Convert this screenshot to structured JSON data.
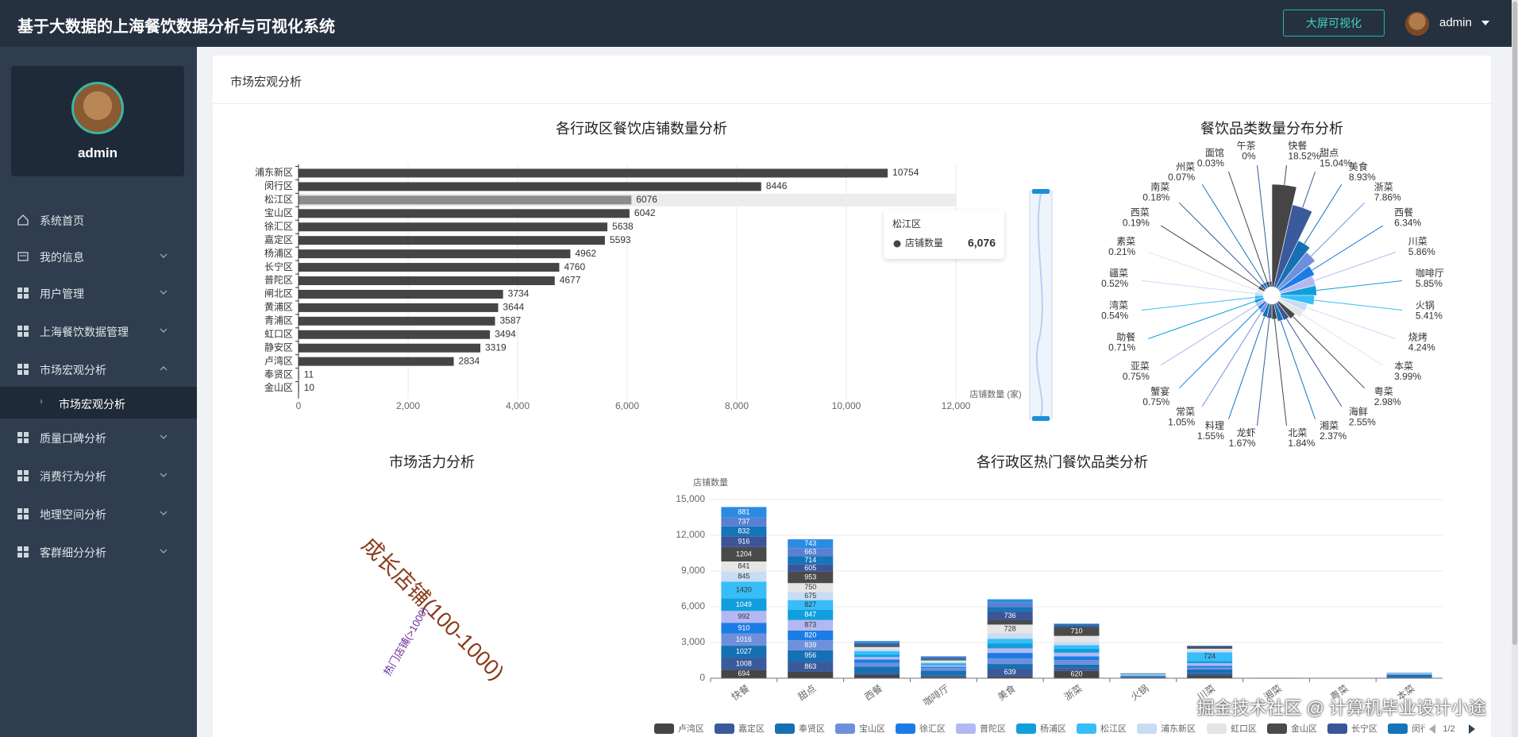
{
  "header": {
    "title": "基于大数据的上海餐饮数据分析与可视化系统",
    "button": "大屏可视化",
    "user": "admin"
  },
  "sidebar": {
    "username": "admin",
    "menu": [
      {
        "label": "系统首页"
      },
      {
        "label": "我的信息"
      },
      {
        "label": "用户管理"
      },
      {
        "label": "上海餐饮数据管理"
      },
      {
        "label": "市场宏观分析",
        "children": [
          "市场宏观分析"
        ]
      },
      {
        "label": "质量口碑分析"
      },
      {
        "label": "消费行为分析"
      },
      {
        "label": "地理空间分析"
      },
      {
        "label": "客群细分分析"
      }
    ]
  },
  "page": {
    "section_title": "市场宏观分析"
  },
  "watermark": "掘金技术社区 @ 计算机毕业设计小途",
  "chart_data": [
    {
      "type": "bar",
      "orientation": "horizontal",
      "title": "各行政区餐饮店铺数量分析",
      "x_label": "店铺数量 (家)",
      "categories": [
        "浦东新区",
        "闵行区",
        "松江区",
        "宝山区",
        "徐汇区",
        "嘉定区",
        "杨浦区",
        "长宁区",
        "普陀区",
        "闸北区",
        "黄浦区",
        "青浦区",
        "虹口区",
        "静安区",
        "卢湾区",
        "奉贤区",
        "金山区"
      ],
      "values": [
        10754,
        8446,
        6076,
        6042,
        5638,
        5593,
        4962,
        4760,
        4677,
        3734,
        3644,
        3587,
        3494,
        3319,
        2834,
        11,
        10
      ],
      "color": "#454545",
      "highlight_color": "#8c8c8c",
      "xlim": [
        0,
        12000
      ],
      "xticks": [
        0,
        {
          "value": 2000,
          "label": "2,000"
        },
        {
          "value": 4000,
          "label": "4,000"
        },
        {
          "value": 6000,
          "label": "6,000"
        },
        {
          "value": 8000,
          "label": "8,000"
        },
        {
          "value": 10000,
          "label": "10,000"
        },
        {
          "value": 12000,
          "label": "12,000"
        }
      ],
      "grid": true,
      "tooltip": {
        "title": "松江区",
        "name": "店铺数量",
        "value": 6076,
        "label": "6,076"
      }
    },
    {
      "type": "pie",
      "rose": true,
      "title": "餐饮品类数量分布分析",
      "categories": [
        "快餐",
        "甜点",
        "美食",
        "浙菜",
        "西餐",
        "川菜",
        "咖啡厅",
        "火锅",
        "烧烤",
        "本菜",
        "粤菜",
        "海鲜",
        "湘菜",
        "北菜",
        "龙虾",
        "料理",
        "常菜",
        "蟹宴",
        "亚菜",
        "助餐",
        "湾菜",
        "疆菜",
        "素菜",
        "西菜",
        "南菜",
        "州菜",
        "面馆",
        "午茶"
      ],
      "values": [
        18.52,
        15.04,
        8.93,
        7.86,
        6.34,
        5.86,
        5.85,
        5.41,
        4.24,
        3.99,
        2.98,
        2.55,
        2.37,
        1.84,
        1.67,
        1.55,
        1.05,
        0.75,
        0.75,
        0.71,
        0.54,
        0.52,
        0.21,
        0.19,
        0.18,
        0.07,
        0.03,
        0
      ],
      "value_labels": [
        "18.52%",
        "15.04%",
        "8.93%",
        "7.86%",
        "6.34%",
        "5.86%",
        "5.85%",
        "5.41%",
        "4.24%",
        "3.99%",
        "2.98%",
        "2.55%",
        "2.37%",
        "1.84%",
        "1.67%",
        "1.55%",
        "1.05%",
        "0.75%",
        "0.75%",
        "0.71%",
        "0.54%",
        "0.52%",
        "0.21%",
        "0.19%",
        "0.18%",
        "0.07%",
        "0.03%",
        "0%"
      ],
      "colors": [
        "#454545",
        "#3a5a9c",
        "#1670b4",
        "#6e90da",
        "#1c7ce6",
        "#b3b8f2",
        "#109fdc",
        "#38bdf8",
        "#c9dcf5",
        "#e5e5e5",
        "#4a4a4a",
        "#3c5597",
        "#1674b9",
        "#454545",
        "#3a5a9c",
        "#1670b4",
        "#6e90da",
        "#1c7ce6",
        "#b3b8f2",
        "#109fdc",
        "#38bdf8",
        "#c9dcf5",
        "#e5e5e5",
        "#4a4a4a",
        "#3c5597",
        "#1674b9",
        "#454545",
        "#3a5a9c"
      ]
    },
    {
      "type": "wordcloud",
      "title": "市场活力分析",
      "words": [
        {
          "text": "成长店铺(100-1000)",
          "color": "#8b3a1a"
        },
        {
          "text": "热门店铺(>1000)",
          "color": "#6a2c9c"
        }
      ]
    },
    {
      "type": "bar",
      "stacked": true,
      "title": "各行政区热门餐饮品类分析",
      "y_label": "店铺数量",
      "categories": [
        "快餐",
        "甜点",
        "西餐",
        "咖啡厅",
        "美食",
        "浙菜",
        "火锅",
        "川菜",
        "湘菜",
        "粤菜",
        "本菜"
      ],
      "ylim": [
        0,
        15000
      ],
      "yticks": [
        0,
        {
          "value": 3000,
          "label": "3,000"
        },
        {
          "value": 6000,
          "label": "6,000"
        },
        {
          "value": 9000,
          "label": "9,000"
        },
        {
          "value": 12000,
          "label": "12,000"
        },
        {
          "value": 15000,
          "label": "15,000"
        }
      ],
      "grid": true,
      "legend_page": "1/2",
      "series": [
        {
          "name": "卢湾区",
          "color": "#454545",
          "values": [
            694,
            535,
            267,
            120,
            160,
            620,
            60,
            231,
            5,
            4,
            40
          ]
        },
        {
          "name": "嘉定区",
          "color": "#3a5a9c",
          "values": [
            1008,
            863,
            161,
            104,
            639,
            230,
            40,
            180,
            3,
            2,
            30
          ]
        },
        {
          "name": "奉贤区",
          "color": "#1670b4",
          "values": [
            1027,
            956,
            543,
            405,
            397,
            290,
            30,
            333,
            4,
            3,
            210
          ]
        },
        {
          "name": "宝山区",
          "color": "#6e90da",
          "values": [
            1016,
            839,
            310,
            230,
            462,
            380,
            40,
            150,
            3,
            2,
            30
          ]
        },
        {
          "name": "徐汇区",
          "color": "#1c7ce6",
          "values": [
            910,
            820,
            285,
            100,
            470,
            320,
            30,
            150,
            2,
            2,
            25
          ]
        },
        {
          "name": "普陀区",
          "color": "#b3b8f2",
          "values": [
            992,
            873,
            219,
            125,
            380,
            300,
            25,
            220,
            3,
            2,
            20
          ]
        },
        {
          "name": "杨浦区",
          "color": "#109fdc",
          "values": [
            1049,
            847,
            180,
            90,
            420,
            330,
            30,
            190,
            2,
            2,
            25
          ]
        },
        {
          "name": "松江区",
          "color": "#38bdf8",
          "values": [
            1420,
            827,
            299,
            110,
            388,
            310,
            40,
            724,
            4,
            3,
            30
          ]
        },
        {
          "name": "浦东新区",
          "color": "#c9dcf5",
          "values": [
            845,
            675,
            208,
            95,
            460,
            260,
            20,
            160,
            3,
            2,
            20
          ]
        },
        {
          "name": "虹口区",
          "color": "#e5e5e5",
          "values": [
            841,
            750,
            150,
            120,
            728,
            514,
            30,
            140,
            2,
            2,
            15
          ]
        },
        {
          "name": "金山区",
          "color": "#4a4a4a",
          "values": [
            1204,
            953,
            120,
            80,
            364,
            710,
            25,
            120,
            2,
            1,
            10
          ]
        },
        {
          "name": "长宁区",
          "color": "#3c5597",
          "values": [
            916,
            605,
            90,
            70,
            736,
            180,
            20,
            100,
            1,
            1,
            10
          ]
        },
        {
          "name": "闵行区",
          "color": "#1674b9",
          "values": [
            832,
            714,
            130,
            90,
            371,
            100,
            15,
            20,
            2,
            1,
            8
          ]
        },
        {
          "name": null,
          "color": "#5a80d2",
          "values": [
            737,
            663,
            80,
            60,
            370,
            30,
            10,
            10,
            1,
            1,
            5
          ]
        },
        {
          "name": null,
          "color": "#2b8be3",
          "values": [
            881,
            743,
            81,
            45,
            283,
            20,
            5,
            5,
            1,
            1,
            2
          ]
        }
      ]
    }
  ]
}
